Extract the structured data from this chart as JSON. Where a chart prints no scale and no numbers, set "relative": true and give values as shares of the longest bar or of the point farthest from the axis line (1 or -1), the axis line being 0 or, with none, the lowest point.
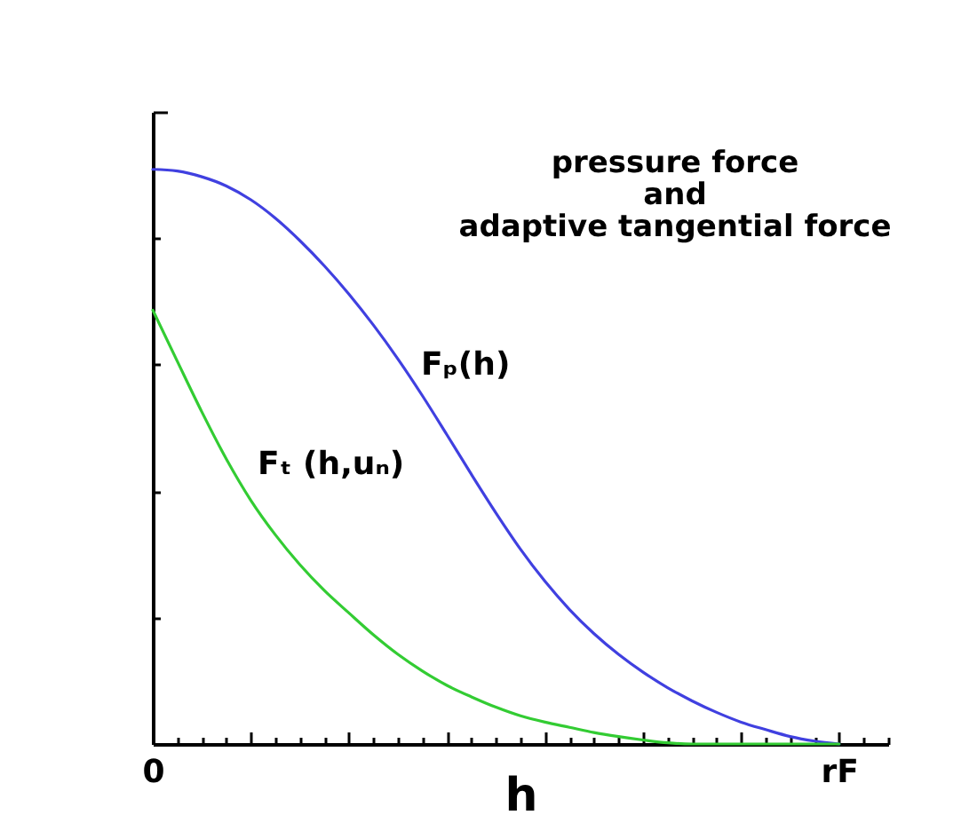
{
  "chart_data": {
    "type": "line",
    "title": "pressure force\nand\nadaptive tangential force",
    "xlabel": "h",
    "relative": true,
    "tick_labels": "x",
    "categories": [
      "0",
      null,
      null,
      null,
      null,
      null,
      null,
      null,
      null,
      null,
      null,
      null,
      null,
      null,
      null,
      null,
      null,
      null,
      null,
      null,
      null,
      null,
      null,
      null,
      null,
      null,
      null,
      null,
      "rF",
      null,
      null
    ],
    "series": [
      {
        "name": "Fₚ(h)",
        "color": "#4040e0",
        "values": [
          1,
          0.997,
          0.987,
          0.971,
          0.947,
          0.915,
          0.876,
          0.832,
          0.783,
          0.729,
          0.67,
          0.606,
          0.538,
          0.469,
          0.402,
          0.339,
          0.283,
          0.234,
          0.192,
          0.156,
          0.125,
          0.098,
          0.075,
          0.055,
          0.038,
          0.025,
          0.013,
          0.005,
          0,
          null,
          null
        ]
      },
      {
        "name": "Fₜ (h,uₙ)",
        "color": "#33cc33",
        "values": [
          0.755,
          0.666,
          0.578,
          0.496,
          0.424,
          0.364,
          0.312,
          0.267,
          0.228,
          0.19,
          0.156,
          0.127,
          0.102,
          0.082,
          0.064,
          0.049,
          0.038,
          0.029,
          0.02,
          0.013,
          0.007,
          0.002,
          0,
          0,
          0,
          0,
          0,
          0,
          0,
          null,
          null
        ]
      }
    ]
  }
}
